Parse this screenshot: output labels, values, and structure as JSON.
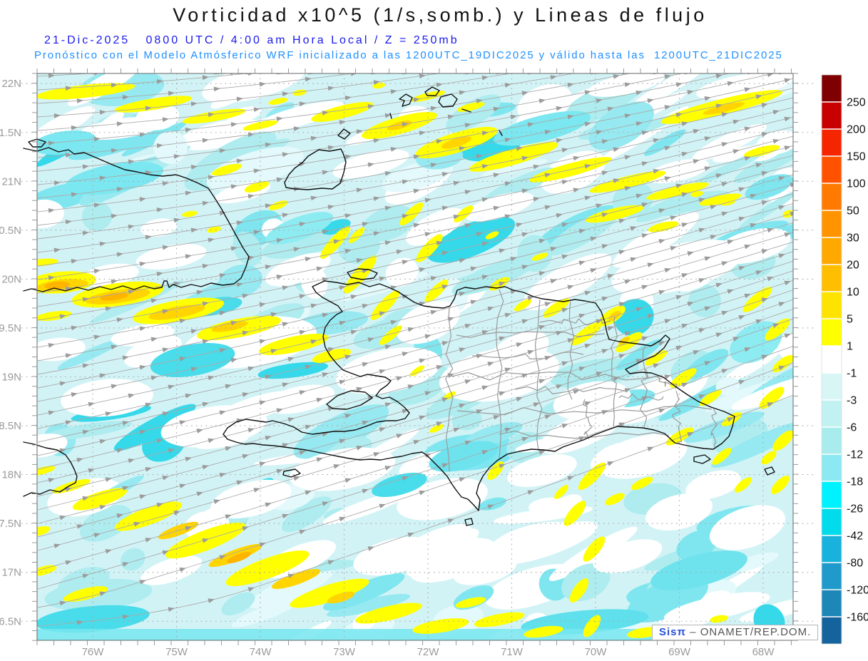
{
  "header": {
    "title": "Vorticidad x10^5 (1/s,somb.) y Lineas de flujo",
    "datetime_line": "21-Dic-2025   0800 UTC / 4:00 am Hora Local / Z = 250mb",
    "model_line": "Pronóstico con el Modelo Atmósferico WRF inicializado a las 1200UTC_19DIC2025 y válido hasta las  1200UTC_21DIC2025",
    "title_color": "#111111",
    "datetime_color": "#1a1aee",
    "model_color": "#1e90ff"
  },
  "axes": {
    "lat_labels": [
      "22N",
      "1.5N",
      "21N",
      "0.5N",
      "20N",
      "9.5N",
      "19N",
      "8.5N",
      "18N",
      "7.5N",
      "17N",
      "6.5N"
    ],
    "lon_labels": [
      "76W",
      "75W",
      "74W",
      "73W",
      "72W",
      "71W",
      "70W",
      "69W",
      "68W"
    ],
    "label_color": "#9a9a9a"
  },
  "colorbar": {
    "tick_labels": [
      "250",
      "200",
      "150",
      "100",
      "50",
      "30",
      "20",
      "10",
      "5",
      "1",
      "-1",
      "-3",
      "-6",
      "-12",
      "-18",
      "-26",
      "-42",
      "-80",
      "-120",
      "-160"
    ],
    "segment_colors": [
      "#7f0000",
      "#c80000",
      "#f52500",
      "#ff5200",
      "#ff7a00",
      "#ff9400",
      "#ffa800",
      "#ffbe00",
      "#ffe300",
      "#ffff00",
      "#ffffff",
      "#d9f6f6",
      "#c2f1f1",
      "#a9eced",
      "#8de9f1",
      "#00f2ff",
      "#00dcec",
      "#18b2dc",
      "#1f9aca",
      "#1d87b8",
      "#15639c"
    ],
    "label_color": "#111111"
  },
  "map": {
    "sea_base_color": "#d2f3f6",
    "coast_color": "#101010",
    "province_color": "#9a9a9a",
    "streamline_color": "#ababab",
    "arrow_color": "#9b9b9b",
    "grid_color": "#a8a8a8",
    "frame_color": "#666666",
    "positive_color": "#ffff00",
    "positive_core_color": "#ffd400",
    "negative_color": "#7fe6f0"
  },
  "watermark": {
    "brand": "Sisπ",
    "separator": " – ",
    "org": "ONAMET/REP.DOM.",
    "brand_color": "#2b50d8",
    "org_color": "#555555"
  }
}
